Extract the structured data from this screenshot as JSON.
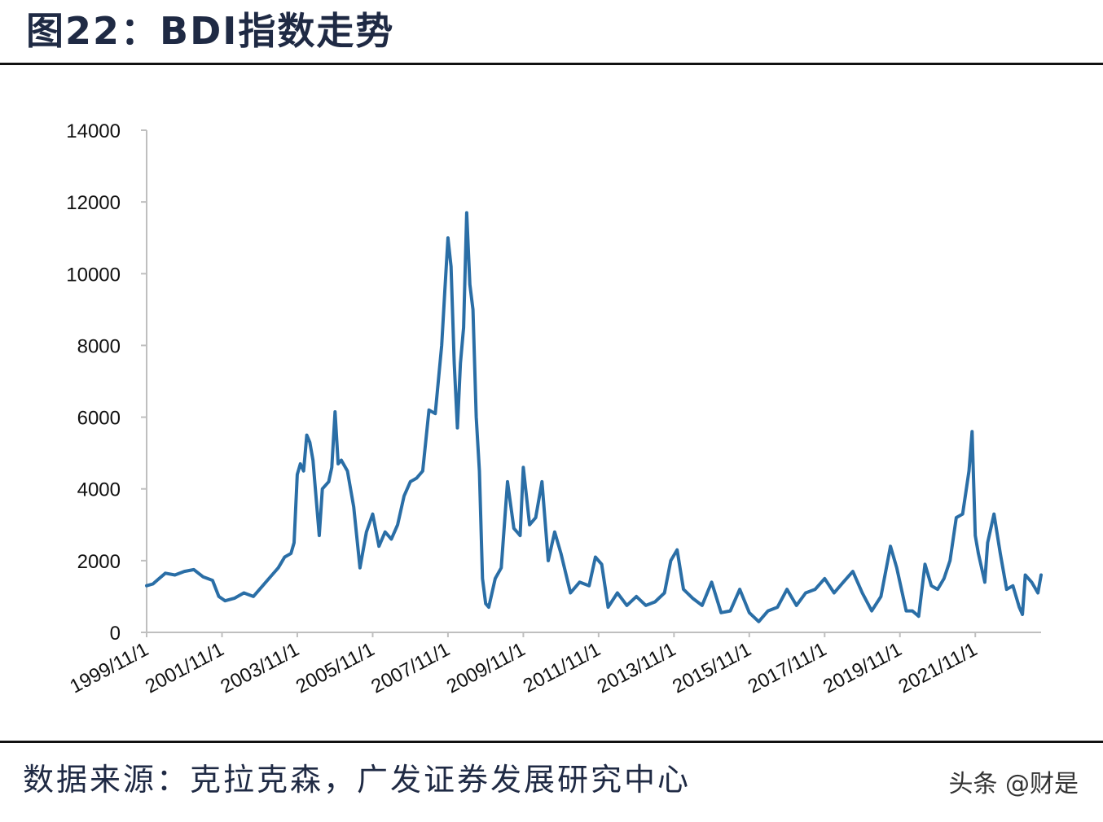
{
  "header": {
    "title": "图22：BDI指数走势"
  },
  "footer": {
    "source": "数据来源：克拉克森，广发证券发展研究中心",
    "watermark": "头条 @财是"
  },
  "colors": {
    "series": "#2a6ea6",
    "axis": "#bfbfbf",
    "text": "#111111"
  },
  "chart_data": {
    "type": "line",
    "title": "",
    "xlabel": "",
    "ylabel": "",
    "ylim": [
      0,
      14000
    ],
    "yticks": [
      0,
      2000,
      4000,
      6000,
      8000,
      10000,
      12000,
      14000
    ],
    "xticks": [
      "1999/11/1",
      "2001/11/1",
      "2003/11/1",
      "2005/11/1",
      "2007/11/1",
      "2009/11/1",
      "2011/11/1",
      "2013/11/1",
      "2015/11/1",
      "2017/11/1",
      "2019/11/1",
      "2021/11/1"
    ],
    "xlim": [
      "1999/11/1",
      "2023/8/1"
    ],
    "grid": false,
    "legend": "none",
    "series": [
      {
        "points": [
          [
            "1999/11/1",
            1300
          ],
          [
            "2000/1/1",
            1350
          ],
          [
            "2000/3/1",
            1500
          ],
          [
            "2000/5/1",
            1650
          ],
          [
            "2000/8/1",
            1600
          ],
          [
            "2000/11/1",
            1700
          ],
          [
            "2001/2/1",
            1750
          ],
          [
            "2001/5/1",
            1550
          ],
          [
            "2001/8/1",
            1450
          ],
          [
            "2001/10/1",
            1000
          ],
          [
            "2001/12/1",
            880
          ],
          [
            "2002/3/1",
            950
          ],
          [
            "2002/6/1",
            1100
          ],
          [
            "2002/9/1",
            1000
          ],
          [
            "2002/12/1",
            1300
          ],
          [
            "2003/3/1",
            1600
          ],
          [
            "2003/5/1",
            1800
          ],
          [
            "2003/7/1",
            2100
          ],
          [
            "2003/9/1",
            2200
          ],
          [
            "2003/10/1",
            2500
          ],
          [
            "2003/11/1",
            4400
          ],
          [
            "2003/12/1",
            4700
          ],
          [
            "2004/1/1",
            4500
          ],
          [
            "2004/2/1",
            5500
          ],
          [
            "2004/3/1",
            5300
          ],
          [
            "2004/4/1",
            4800
          ],
          [
            "2004/6/1",
            2700
          ],
          [
            "2004/7/1",
            4000
          ],
          [
            "2004/9/1",
            4200
          ],
          [
            "2004/10/1",
            4600
          ],
          [
            "2004/11/1",
            6150
          ],
          [
            "2004/12/1",
            4700
          ],
          [
            "2005/1/1",
            4800
          ],
          [
            "2005/3/1",
            4500
          ],
          [
            "2005/5/1",
            3500
          ],
          [
            "2005/7/1",
            1800
          ],
          [
            "2005/9/1",
            2800
          ],
          [
            "2005/11/1",
            3300
          ],
          [
            "2006/1/1",
            2400
          ],
          [
            "2006/3/1",
            2800
          ],
          [
            "2006/5/1",
            2600
          ],
          [
            "2006/7/1",
            3000
          ],
          [
            "2006/9/1",
            3800
          ],
          [
            "2006/11/1",
            4200
          ],
          [
            "2007/1/1",
            4300
          ],
          [
            "2007/3/1",
            4500
          ],
          [
            "2007/5/1",
            6200
          ],
          [
            "2007/7/1",
            6100
          ],
          [
            "2007/9/1",
            8000
          ],
          [
            "2007/10/1",
            9500
          ],
          [
            "2007/11/1",
            11000
          ],
          [
            "2007/12/1",
            10200
          ],
          [
            "2008/1/1",
            7500
          ],
          [
            "2008/2/1",
            5700
          ],
          [
            "2008/3/1",
            7500
          ],
          [
            "2008/4/1",
            8500
          ],
          [
            "2008/5/1",
            11700
          ],
          [
            "2008/6/1",
            9700
          ],
          [
            "2008/7/1",
            9000
          ],
          [
            "2008/8/1",
            6000
          ],
          [
            "2008/9/1",
            4500
          ],
          [
            "2008/10/1",
            1500
          ],
          [
            "2008/11/1",
            800
          ],
          [
            "2008/12/1",
            700
          ],
          [
            "2009/2/1",
            1500
          ],
          [
            "2009/4/1",
            1800
          ],
          [
            "2009/6/1",
            4200
          ],
          [
            "2009/8/1",
            2900
          ],
          [
            "2009/10/1",
            2700
          ],
          [
            "2009/11/1",
            4600
          ],
          [
            "2010/1/1",
            3000
          ],
          [
            "2010/3/1",
            3200
          ],
          [
            "2010/5/1",
            4200
          ],
          [
            "2010/7/1",
            2000
          ],
          [
            "2010/9/1",
            2800
          ],
          [
            "2010/11/1",
            2200
          ],
          [
            "2011/2/1",
            1100
          ],
          [
            "2011/5/1",
            1400
          ],
          [
            "2011/8/1",
            1300
          ],
          [
            "2011/10/1",
            2100
          ],
          [
            "2011/12/1",
            1900
          ],
          [
            "2012/2/1",
            700
          ],
          [
            "2012/5/1",
            1100
          ],
          [
            "2012/8/1",
            750
          ],
          [
            "2012/11/1",
            1000
          ],
          [
            "2013/2/1",
            750
          ],
          [
            "2013/5/1",
            850
          ],
          [
            "2013/8/1",
            1100
          ],
          [
            "2013/10/1",
            2000
          ],
          [
            "2013/12/1",
            2300
          ],
          [
            "2014/2/1",
            1200
          ],
          [
            "2014/5/1",
            950
          ],
          [
            "2014/8/1",
            750
          ],
          [
            "2014/11/1",
            1400
          ],
          [
            "2015/2/1",
            550
          ],
          [
            "2015/5/1",
            600
          ],
          [
            "2015/8/1",
            1200
          ],
          [
            "2015/11/1",
            550
          ],
          [
            "2016/2/1",
            300
          ],
          [
            "2016/5/1",
            600
          ],
          [
            "2016/8/1",
            700
          ],
          [
            "2016/11/1",
            1200
          ],
          [
            "2017/2/1",
            750
          ],
          [
            "2017/5/1",
            1100
          ],
          [
            "2017/8/1",
            1200
          ],
          [
            "2017/11/1",
            1500
          ],
          [
            "2018/2/1",
            1100
          ],
          [
            "2018/5/1",
            1400
          ],
          [
            "2018/8/1",
            1700
          ],
          [
            "2018/11/1",
            1100
          ],
          [
            "2019/2/1",
            600
          ],
          [
            "2019/5/1",
            1000
          ],
          [
            "2019/8/1",
            2400
          ],
          [
            "2019/10/1",
            1800
          ],
          [
            "2020/1/1",
            600
          ],
          [
            "2020/3/1",
            600
          ],
          [
            "2020/5/1",
            450
          ],
          [
            "2020/7/1",
            1900
          ],
          [
            "2020/9/1",
            1300
          ],
          [
            "2020/11/1",
            1200
          ],
          [
            "2021/1/1",
            1500
          ],
          [
            "2021/3/1",
            2000
          ],
          [
            "2021/5/1",
            3200
          ],
          [
            "2021/7/1",
            3300
          ],
          [
            "2021/9/1",
            4500
          ],
          [
            "2021/10/1",
            5600
          ],
          [
            "2021/11/1",
            2700
          ],
          [
            "2021/12/1",
            2200
          ],
          [
            "2022/2/1",
            1400
          ],
          [
            "2022/3/1",
            2500
          ],
          [
            "2022/5/1",
            3300
          ],
          [
            "2022/7/1",
            2200
          ],
          [
            "2022/9/1",
            1200
          ],
          [
            "2022/11/1",
            1300
          ],
          [
            "2023/1/1",
            700
          ],
          [
            "2023/2/1",
            500
          ],
          [
            "2023/3/1",
            1600
          ],
          [
            "2023/5/1",
            1400
          ],
          [
            "2023/7/1",
            1100
          ],
          [
            "2023/8/1",
            1600
          ]
        ]
      }
    ]
  }
}
